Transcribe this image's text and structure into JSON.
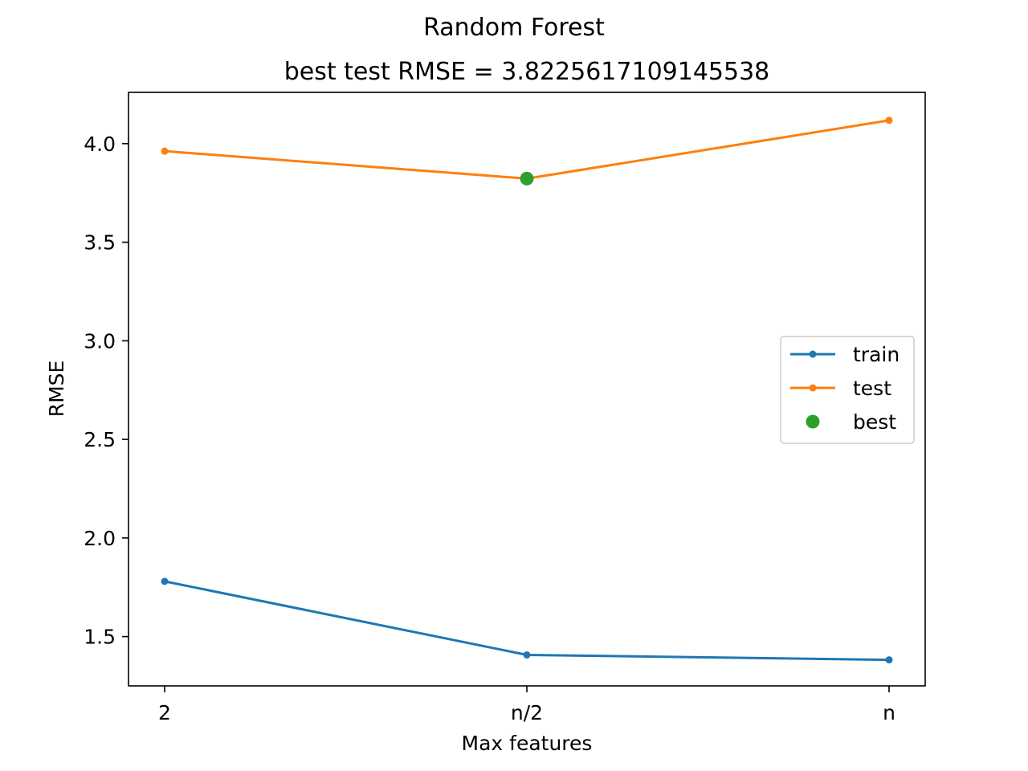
{
  "chart_data": {
    "type": "line",
    "suptitle": "Random Forest",
    "title": "best test RMSE = 3.8225617109145538",
    "xlabel": "Max features",
    "ylabel": "RMSE",
    "categories": [
      "2",
      "n/2",
      "n"
    ],
    "ylim": [
      1.25,
      4.26
    ],
    "yticks": [
      1.5,
      2.0,
      2.5,
      3.0,
      3.5,
      4.0
    ],
    "ytick_labels": [
      "1.5",
      "2.0",
      "2.5",
      "3.0",
      "3.5",
      "4.0"
    ],
    "series": [
      {
        "name": "train",
        "values": [
          1.78,
          1.407,
          1.382
        ],
        "color": "#1f77b4",
        "marker": "small-dot"
      },
      {
        "name": "test",
        "values": [
          3.962,
          3.8225617109145538,
          4.118
        ],
        "color": "#ff7f0e",
        "marker": "small-dot"
      }
    ],
    "best": {
      "name": "best",
      "category": "n/2",
      "value": 3.8225617109145538,
      "color": "#2ca02c",
      "marker": "large-dot"
    },
    "legend_position": "center-right",
    "grid": false
  }
}
